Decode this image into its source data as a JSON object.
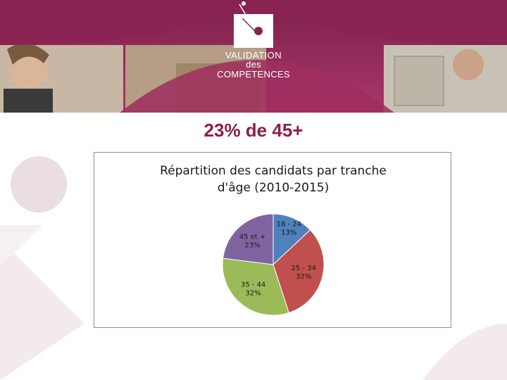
{
  "logo": {
    "line1": "VALIDATION",
    "line2": "des COMPETENCES"
  },
  "slide": {
    "title": "23% de 45+"
  },
  "colors": {
    "brand": "#8c1f4b",
    "banner": "#9b2a5c"
  },
  "chart_data": {
    "type": "pie",
    "title_lines": [
      "Répartition des candidats par tranche",
      "d'âge (2010-2015)"
    ],
    "slices": [
      {
        "label": "18 - 24",
        "percent_label": "13%",
        "value": 13,
        "color": "#4f81bd"
      },
      {
        "label": "25 - 34",
        "percent_label": "32%",
        "value": 32,
        "color": "#c0504d"
      },
      {
        "label": "35 - 44",
        "percent_label": "32%",
        "value": 32,
        "color": "#9bbb59"
      },
      {
        "label": "45 et +",
        "percent_label": "23%",
        "value": 23,
        "color": "#8064a2"
      }
    ]
  }
}
